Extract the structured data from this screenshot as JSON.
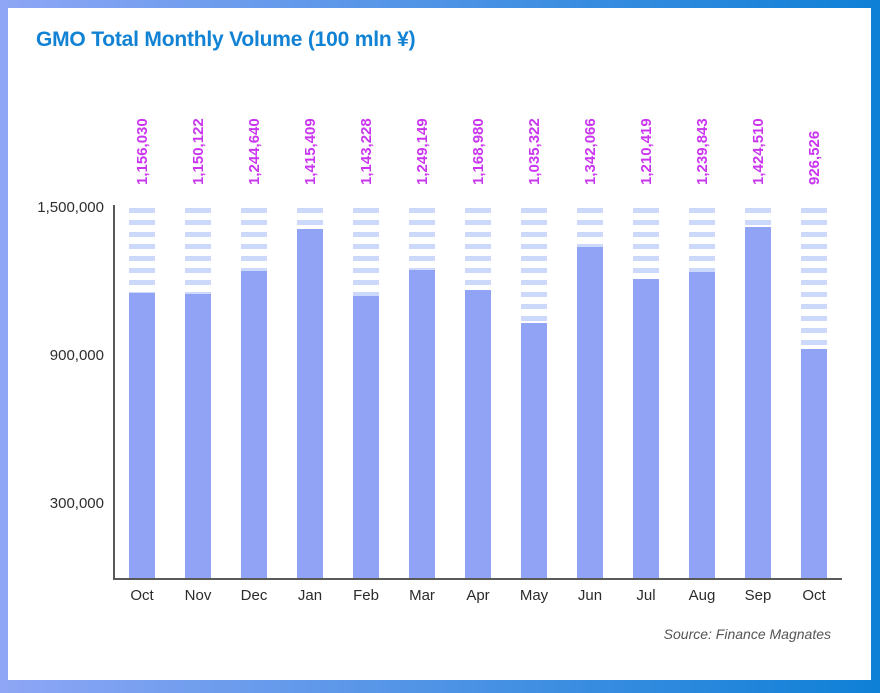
{
  "frame": {
    "gradient_left": "#8ea6f5",
    "gradient_right": "#0e80d6"
  },
  "title": "GMO Total Monthly Volume (100 mln ¥)",
  "source": {
    "text": "Source: Finance Magnates"
  },
  "colors": {
    "title": "#1182d4",
    "bar": "#90a3f4",
    "ghost_stripe": "#cdd9fb",
    "value_label": "#ca35ef",
    "axis": "#595959",
    "tick_text": "#2e2e2e",
    "month_text": "#2b2b2b"
  },
  "chart_data": {
    "type": "bar",
    "title": "GMO Total Monthly Volume (100 mln ¥)",
    "categories": [
      "Oct",
      "Nov",
      "Dec",
      "Jan",
      "Feb",
      "Mar",
      "Apr",
      "May",
      "Jun",
      "Jul",
      "Aug",
      "Sep",
      "Oct"
    ],
    "values": [
      1156030,
      1150122,
      1244640,
      1415409,
      1143228,
      1249149,
      1168980,
      1035322,
      1342066,
      1210419,
      1239843,
      1424510,
      926526
    ],
    "value_labels": [
      "1,156,030",
      "1,150,122",
      "1,244,640",
      "1,415,409",
      "1,143,228",
      "1,249,149",
      "1,168,980",
      "1,035,322",
      "1,342,066",
      "1,210,419",
      "1,239,843",
      "1,424,510",
      "926,526"
    ],
    "xlabel": "",
    "ylabel": "",
    "ylim": [
      0,
      1500000
    ],
    "yticks": [
      {
        "value": 1500000,
        "label": "1,500,000"
      },
      {
        "value": 900000,
        "label": "900,000"
      },
      {
        "value": 300000,
        "label": "300,000"
      }
    ],
    "grid": false,
    "legend": false,
    "bar_style": "solid bar to value with horizontal-striped ghost column up to y-max",
    "source": "Source: Finance Magnates"
  }
}
